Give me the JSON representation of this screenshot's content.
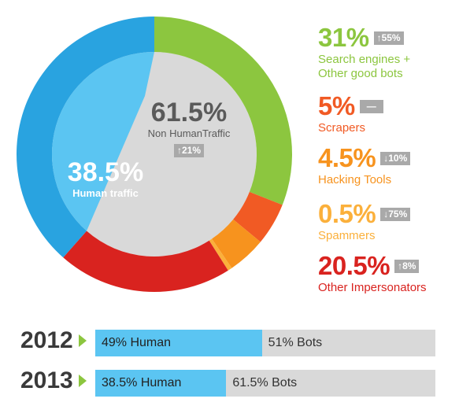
{
  "chart_data": [
    {
      "type": "pie",
      "center_pct": "61.5%",
      "center_label": "Non HumanTraffic",
      "center_badge": "↑21%",
      "human_pct": "38.5%",
      "human_label": "Human traffic",
      "slices": [
        {
          "name": "Search engines + Other good bots",
          "value": 31,
          "color": "#8cc63f"
        },
        {
          "name": "Scrapers",
          "value": 5,
          "color": "#f15a24"
        },
        {
          "name": "Hacking Tools",
          "value": 4.5,
          "color": "#f7931e"
        },
        {
          "name": "Spammers",
          "value": 0.5,
          "color": "#fbb03b"
        },
        {
          "name": "Other Impersonators",
          "value": 20.5,
          "color": "#d9231f"
        },
        {
          "name": "Human traffic",
          "value": 38.5,
          "color": "#29a3e0"
        }
      ],
      "inner_color": "#d9d9d9",
      "inner_human_color": "#5bc5f2"
    },
    {
      "type": "bar",
      "categories": [
        "2012",
        "2013"
      ],
      "series": [
        {
          "name": "Human",
          "values": [
            49,
            38.5
          ]
        },
        {
          "name": "Bots",
          "values": [
            51,
            61.5
          ]
        }
      ],
      "labels": [
        {
          "human": "49% Human",
          "bots": "51% Bots"
        },
        {
          "human": "38.5% Human",
          "bots": "61.5% Bots"
        }
      ]
    }
  ],
  "legend": [
    {
      "pct": "31%",
      "badge": "↑55%",
      "label_lines": [
        "Search engines +",
        "Other good bots"
      ],
      "color": "#8cc63f"
    },
    {
      "pct": "5%",
      "badge": "—",
      "label_lines": [
        "Scrapers"
      ],
      "color": "#f15a24"
    },
    {
      "pct": "4.5%",
      "badge": "↓10%",
      "label_lines": [
        "Hacking Tools"
      ],
      "color": "#f7931e"
    },
    {
      "pct": "0.5%",
      "badge": "↓75%",
      "label_lines": [
        "Spammers"
      ],
      "color": "#fbb03b"
    },
    {
      "pct": "20.5%",
      "badge": "↑8%",
      "label_lines": [
        "Other Impersonators"
      ],
      "color": "#d9231f"
    }
  ]
}
